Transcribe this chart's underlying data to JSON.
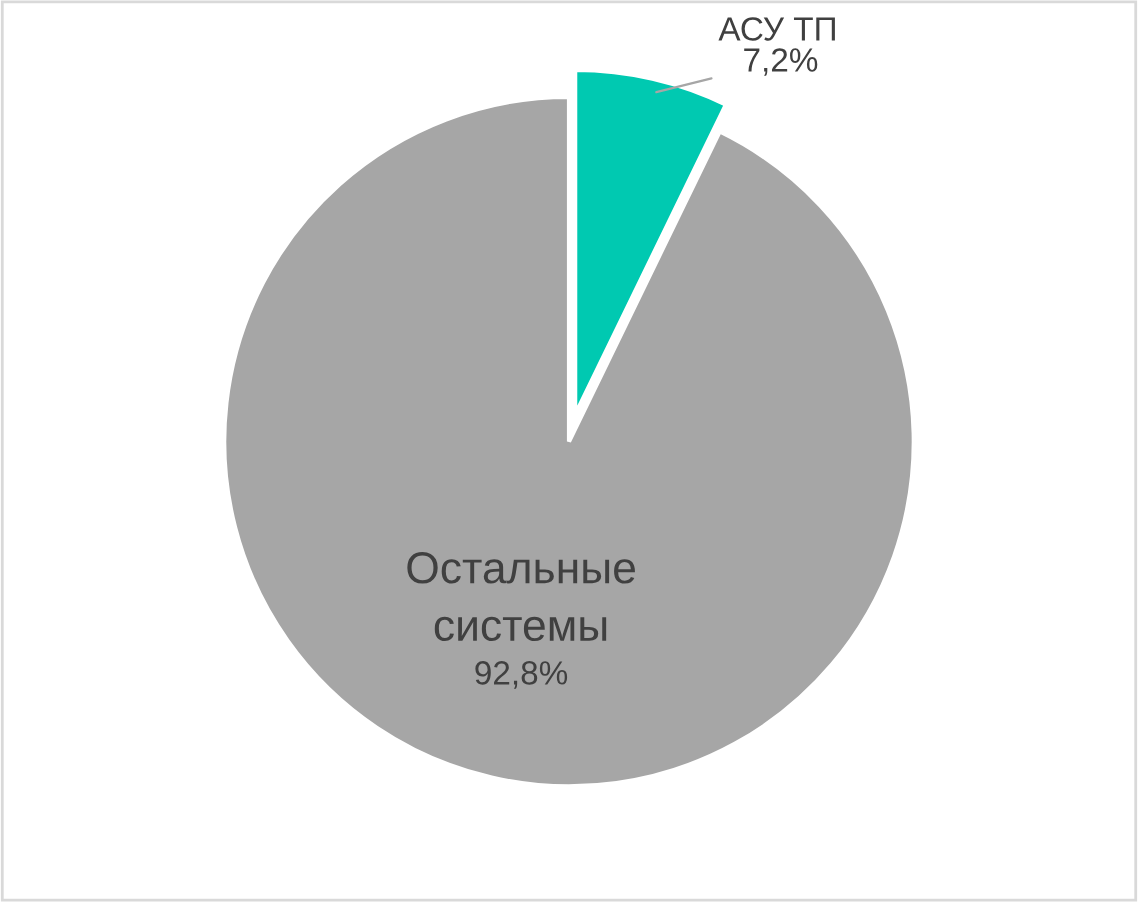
{
  "chart_data": {
    "type": "pie",
    "categories": [
      "АСУ ТП",
      "Остальные\nсистемы"
    ],
    "values": [
      7.2,
      92.8
    ],
    "colors": [
      "#00c9b1",
      "#a6a6a6"
    ],
    "value_labels": [
      "7,2%",
      "92,8%"
    ]
  }
}
